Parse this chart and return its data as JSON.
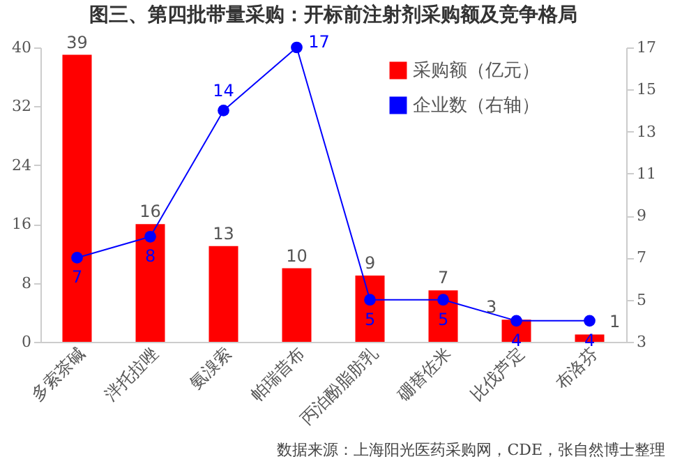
{
  "chart_data": {
    "type": "bar",
    "title": "图三、第四批带量采购：开标前注射剂采购额及竞争格局",
    "categories": [
      "多索茶碱",
      "泮托拉唑",
      "氨溴索",
      "帕瑞昔布",
      "丙泊酚脂肪乳",
      "硼替佐米",
      "比伐芦定",
      "布洛芬"
    ],
    "series": [
      {
        "name": "采购额（亿元）",
        "color": "#ff0000",
        "values": [
          39,
          16,
          13,
          10,
          9,
          7,
          3,
          1
        ]
      },
      {
        "name": "企业数（右轴）",
        "type": "line",
        "axis": "y2",
        "color": "#0000ff",
        "marker": "circle",
        "values": [
          7,
          8,
          14,
          17,
          5,
          5,
          4,
          4
        ]
      }
    ],
    "data_labels": true,
    "ylim": [
      0,
      40
    ],
    "yticks": [
      0,
      8,
      16,
      24,
      32,
      40
    ],
    "y2lim": [
      3,
      17
    ],
    "y2ticks": [
      3,
      5,
      7,
      9,
      11,
      13,
      15,
      17
    ],
    "grid": false,
    "legend": "top right",
    "annotations": [
      "数据来源：上海阳光医药采购网，CDE，张自然博士整理"
    ]
  }
}
